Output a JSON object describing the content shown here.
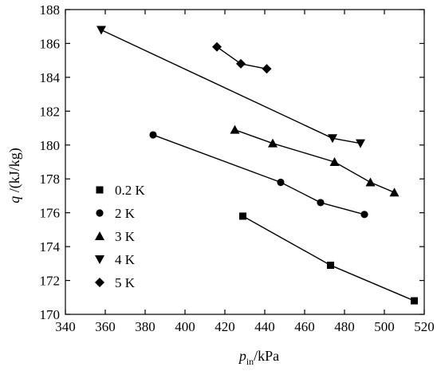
{
  "chart_data": {
    "type": "line",
    "xlabel": {
      "main": "p",
      "sub": "in",
      "unit": "/kPa"
    },
    "ylabel": {
      "main": "q",
      "unit": " /(kJ/kg)"
    },
    "xlim": [
      340,
      520
    ],
    "ylim": [
      170,
      188
    ],
    "xticks": [
      "340",
      "360",
      "380",
      "400",
      "420",
      "440",
      "460",
      "480",
      "500",
      "520"
    ],
    "yticks": [
      "170",
      "172",
      "174",
      "176",
      "178",
      "180",
      "182",
      "184",
      "186",
      "188"
    ],
    "legend_position": "left",
    "series": [
      {
        "name": "0.2 K",
        "marker": "square",
        "x": [
          429,
          473,
          515
        ],
        "y": [
          175.8,
          172.9,
          170.8
        ]
      },
      {
        "name": "2 K",
        "marker": "circle",
        "x": [
          384,
          448,
          468,
          490
        ],
        "y": [
          180.6,
          177.8,
          176.6,
          175.9
        ]
      },
      {
        "name": "3 K",
        "marker": "triangle-up",
        "x": [
          425,
          444,
          475,
          493,
          505
        ],
        "y": [
          180.9,
          180.1,
          179.0,
          177.8,
          177.2
        ]
      },
      {
        "name": "4 K",
        "marker": "triangle-down",
        "x": [
          358,
          474,
          488
        ],
        "y": [
          186.8,
          180.4,
          180.1
        ]
      },
      {
        "name": "5 K",
        "marker": "diamond",
        "x": [
          416,
          428,
          441
        ],
        "y": [
          185.8,
          184.8,
          184.5
        ]
      }
    ]
  }
}
